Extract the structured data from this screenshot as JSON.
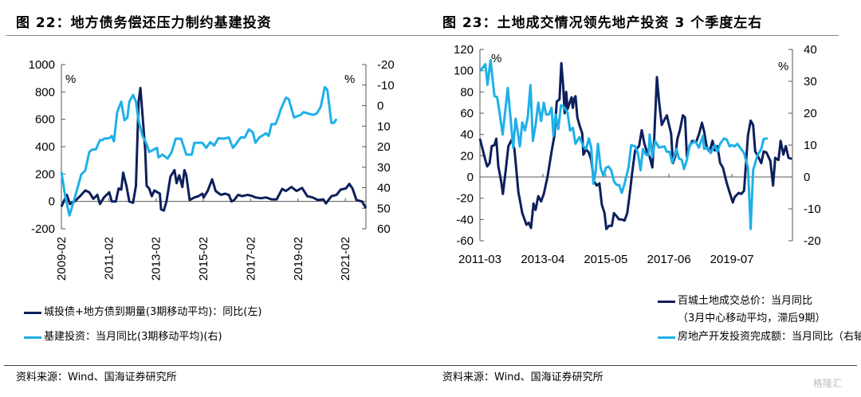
{
  "colors": {
    "dark": "#0d1f5c",
    "light": "#1eb0e8"
  },
  "source_left": "资料来源：Wind、国海证券研究所",
  "source_right": "资料来源：Wind、国海证券研究所",
  "watermark": "格隆汇",
  "chart_data": [
    {
      "type": "line",
      "title": "图 22：地方债务偿还压力制约基建投资",
      "ylabel_left": "%",
      "ylabel_right": "%",
      "ylim_left": [
        -200,
        1000
      ],
      "yticks_left": [
        "1000",
        "800",
        "600",
        "400",
        "200",
        "0",
        "-200"
      ],
      "ylim_right": [
        -20,
        60
      ],
      "right_inverted": true,
      "yticks_right": [
        "-20",
        "-10",
        "0",
        "10",
        "20",
        "30",
        "40",
        "50",
        "60"
      ],
      "xlim": [
        2009.08,
        2021.95
      ],
      "xticks": [
        {
          "x": 2009.08,
          "label": "2009-02"
        },
        {
          "x": 2011.08,
          "label": "2011-02"
        },
        {
          "x": 2013.08,
          "label": "2013-02"
        },
        {
          "x": 2015.08,
          "label": "2015-02"
        },
        {
          "x": 2017.08,
          "label": "2017-02"
        },
        {
          "x": 2019.08,
          "label": "2019-02"
        },
        {
          "x": 2021.08,
          "label": "2021-02"
        }
      ],
      "series": [
        {
          "name": "城投债+地方债到期量(3期移动平均)：同比(左)",
          "axis": "left",
          "color": "dark",
          "x": [
            2009.08,
            2009.31,
            2009.44,
            2009.64,
            2009.87,
            2010.09,
            2010.26,
            2010.43,
            2010.6,
            2010.71,
            2010.88,
            2011.1,
            2011.21,
            2011.38,
            2011.5,
            2011.61,
            2011.69,
            2011.83,
            2011.95,
            2012.11,
            2012.23,
            2012.34,
            2012.42,
            2012.51,
            2012.62,
            2012.68,
            2012.79,
            2012.9,
            2013.01,
            2013.24,
            2013.29,
            2013.41,
            2013.52,
            2013.69,
            2013.86,
            2013.95,
            2014.06,
            2014.19,
            2014.28,
            2014.36,
            2014.5,
            2014.7,
            2014.87,
            2015.04,
            2015.09,
            2015.26,
            2015.45,
            2015.6,
            2015.82,
            2015.99,
            2016.16,
            2016.27,
            2016.38,
            2016.55,
            2016.72,
            2016.95,
            2017.17,
            2017.28,
            2017.51,
            2017.73,
            2017.96,
            2018.18,
            2018.41,
            2018.57,
            2018.8,
            2019.02,
            2019.25,
            2019.47,
            2019.7,
            2019.92,
            2020.15,
            2020.26,
            2020.49,
            2020.71,
            2020.88,
            2021.1,
            2021.25,
            2021.38,
            2021.55,
            2021.78,
            2021.95
          ],
          "y": [
            -38,
            48,
            -19,
            0,
            38,
            80,
            67,
            19,
            48,
            -19,
            29,
            67,
            0,
            0,
            95,
            86,
            210,
            114,
            0,
            -10,
            114,
            724,
            829,
            629,
            381,
            114,
            95,
            38,
            80,
            57,
            -57,
            -67,
            0,
            181,
            229,
            133,
            191,
            105,
            229,
            191,
            10,
            29,
            38,
            57,
            29,
            76,
            162,
            76,
            48,
            57,
            48,
            0,
            10,
            48,
            38,
            48,
            38,
            29,
            23,
            29,
            15,
            15,
            91,
            76,
            105,
            76,
            99,
            38,
            29,
            10,
            15,
            -15,
            38,
            48,
            86,
            95,
            128,
            95,
            10,
            0,
            -48
          ]
        },
        {
          "name": "基建投资：当月同比(3期移动平均)(右)",
          "axis": "right",
          "color": "light",
          "x": [
            2009.08,
            2009.25,
            2009.42,
            2009.59,
            2009.75,
            2009.92,
            2010.09,
            2010.26,
            2010.37,
            2010.54,
            2010.71,
            2010.82,
            2010.88,
            2011.1,
            2011.21,
            2011.3,
            2011.44,
            2011.61,
            2011.75,
            2011.87,
            2011.95,
            2012.11,
            2012.23,
            2012.34,
            2012.51,
            2012.68,
            2012.79,
            2013.12,
            2013.18,
            2013.35,
            2013.57,
            2013.74,
            2013.91,
            2014.14,
            2014.36,
            2014.59,
            2014.7,
            2015.04,
            2015.2,
            2015.37,
            2015.54,
            2015.71,
            2015.93,
            2016.16,
            2016.33,
            2016.5,
            2016.66,
            2016.83,
            2017.0,
            2017.17,
            2017.28,
            2017.45,
            2017.73,
            2017.84,
            2017.96,
            2018.13,
            2018.24,
            2018.35,
            2018.57,
            2018.69,
            2018.91,
            2019.19,
            2019.31,
            2019.53,
            2019.7,
            2019.87,
            2020.04,
            2020.21,
            2020.32,
            2020.49,
            2020.6,
            2020.71
          ],
          "y": [
            32.3,
            44.5,
            53.5,
            47.1,
            40.6,
            33.5,
            31.6,
            22.6,
            21.5,
            21.3,
            16.8,
            16.8,
            16.1,
            15.9,
            14.8,
            17.4,
            3.2,
            -1.9,
            7.1,
            5.8,
            -1.9,
            -5.2,
            -1.9,
            7.1,
            14.8,
            18.7,
            22.6,
            20.6,
            25.2,
            23.9,
            25.8,
            22.6,
            16.1,
            16.1,
            23.9,
            23.9,
            18.1,
            18.1,
            20.6,
            17.8,
            19.4,
            15.9,
            16.1,
            15.5,
            20.6,
            18.1,
            15.5,
            15.5,
            11.6,
            12.9,
            18.1,
            15.5,
            13.5,
            14.8,
            9.0,
            9.0,
            5.8,
            1.9,
            -3.9,
            -3.2,
            5.8,
            4.5,
            3.2,
            3.9,
            4.5,
            3.9,
            0.6,
            -9.0,
            -7.7,
            8.4,
            8.4,
            6.5
          ]
        }
      ]
    },
    {
      "type": "line",
      "title": "图 23：土地成交情况领先地产投资 3 个季度左右",
      "ylabel_left": "%",
      "ylabel_right": "%",
      "ylim_left": [
        -60,
        120
      ],
      "yticks_left": [
        "120",
        "100",
        "80",
        "60",
        "40",
        "20",
        "0",
        "-20",
        "-40",
        "-60"
      ],
      "ylim_right": [
        -20,
        40
      ],
      "yticks_right": [
        "40",
        "30",
        "20",
        "10",
        "0",
        "-10",
        "-20"
      ],
      "xlim": [
        2011.17,
        2021.5
      ],
      "xticks": [
        {
          "x": 2011.17,
          "label": "2011-03"
        },
        {
          "x": 2013.25,
          "label": "2013-04"
        },
        {
          "x": 2015.33,
          "label": "2015-05"
        },
        {
          "x": 2017.42,
          "label": "2017-06"
        },
        {
          "x": 2019.5,
          "label": "2019-07"
        }
      ],
      "series": [
        {
          "name": "百城土地成交总价：当月同比（3月中心移动平均，滞后9期）",
          "axis": "left",
          "color": "dark",
          "x": [
            2011.17,
            2011.35,
            2011.41,
            2011.49,
            2011.56,
            2011.65,
            2011.71,
            2011.78,
            2011.87,
            2011.93,
            2012.02,
            2012.11,
            2012.22,
            2012.31,
            2012.44,
            2012.57,
            2012.71,
            2012.78,
            2012.86,
            2012.94,
            2013.01,
            2013.1,
            2013.19,
            2013.28,
            2013.41,
            2013.54,
            2013.63,
            2013.71,
            2013.8,
            2013.86,
            2013.92,
            2013.97,
            2014.02,
            2014.07,
            2014.15,
            2014.2,
            2014.24,
            2014.28,
            2014.33,
            2014.39,
            2014.46,
            2014.55,
            2014.59,
            2014.68,
            2014.77,
            2014.85,
            2014.94,
            2015.03,
            2015.12,
            2015.2,
            2015.29,
            2015.35,
            2015.44,
            2015.53,
            2015.6,
            2015.69,
            2015.77,
            2015.86,
            2015.95,
            2016.04,
            2016.13,
            2016.21,
            2016.3,
            2016.43,
            2016.52,
            2016.61,
            2016.7,
            2016.78,
            2016.87,
            2016.93,
            2017.02,
            2017.09,
            2017.18,
            2017.27,
            2017.35,
            2017.42,
            2017.49,
            2017.55,
            2017.62,
            2017.7,
            2017.78,
            2017.88,
            2017.95,
            2018.01,
            2018.1,
            2018.19,
            2018.32,
            2018.42,
            2018.51,
            2018.58,
            2018.67,
            2018.76,
            2018.86,
            2018.93,
            2019.02,
            2019.11,
            2019.2,
            2019.33,
            2019.53,
            2019.59,
            2019.72,
            2019.81,
            2019.9,
            2020.03,
            2020.12,
            2020.2,
            2020.27,
            2020.35,
            2020.47,
            2020.55,
            2020.64,
            2020.77,
            2020.86,
            2020.93,
            2021.04,
            2021.11,
            2021.2,
            2021.28,
            2021.37,
            2021.48
          ],
          "y": [
            36,
            16,
            10,
            13,
            29,
            30,
            36,
            10,
            -4,
            -16,
            6,
            29,
            35,
            26,
            -14,
            -34,
            -45,
            -43,
            -48,
            -25,
            -31,
            -18,
            -23,
            -16,
            1,
            24,
            39,
            71,
            73,
            107,
            86,
            60,
            80,
            64,
            71,
            75,
            65,
            73,
            76,
            56,
            49,
            41,
            21,
            26,
            23,
            16,
            -4,
            -8,
            -6,
            -26,
            -34,
            -49,
            -46,
            -46,
            -34,
            -37,
            -40,
            -40,
            -41,
            -34,
            -14,
            6,
            25,
            29,
            44,
            31,
            23,
            19,
            9,
            36,
            94,
            71,
            49,
            54,
            58,
            49,
            41,
            13,
            19,
            36,
            44,
            58,
            56,
            19,
            29,
            34,
            33,
            41,
            51,
            43,
            28,
            24,
            34,
            25,
            29,
            13,
            9,
            -6,
            -24,
            -19,
            -15,
            -16,
            -13,
            39,
            53,
            49,
            24,
            20,
            13,
            24,
            23,
            15,
            -8,
            18,
            16,
            34,
            21,
            29,
            18,
            17
          ]
        },
        {
          "name": "房地产开发投资完成额：当月同比（右轴）",
          "axis": "right",
          "color": "light",
          "x": [
            2011.17,
            2011.26,
            2011.35,
            2011.42,
            2011.52,
            2011.65,
            2011.74,
            2011.83,
            2011.92,
            2012.09,
            2012.18,
            2012.27,
            2012.35,
            2012.49,
            2012.57,
            2012.66,
            2012.75,
            2012.84,
            2012.92,
            2013.01,
            2013.1,
            2013.19,
            2013.28,
            2013.36,
            2013.45,
            2013.54,
            2013.6,
            2013.67,
            2013.76,
            2013.85,
            2013.93,
            2014.06,
            2014.15,
            2014.24,
            2014.33,
            2014.46,
            2014.59,
            2014.68,
            2014.77,
            2014.85,
            2014.92,
            2014.99,
            2015.07,
            2015.16,
            2015.25,
            2015.34,
            2015.42,
            2015.51,
            2015.6,
            2015.69,
            2015.77,
            2015.86,
            2015.95,
            2016.08,
            2016.17,
            2016.3,
            2016.39,
            2016.48,
            2016.56,
            2016.65,
            2016.74,
            2016.78,
            2016.87,
            2016.96,
            2017.09,
            2017.27,
            2017.35,
            2017.44,
            2017.53,
            2017.66,
            2017.75,
            2017.84,
            2017.92,
            2018.01,
            2018.1,
            2018.28,
            2018.41,
            2018.54,
            2018.58,
            2018.71,
            2018.8,
            2018.93,
            2019.02,
            2019.11,
            2019.24,
            2019.33,
            2019.42,
            2019.5,
            2019.59,
            2019.68,
            2019.77,
            2019.9,
            2020.03,
            2020.12,
            2020.2,
            2020.34,
            2020.47,
            2020.55,
            2020.68
          ],
          "y": [
            33.3,
            34.2,
            35.4,
            28.9,
            36.7,
            25.4,
            25.0,
            19.6,
            13.3,
            27.9,
            18.8,
            9.2,
            18.3,
            9.6,
            17.1,
            14.6,
            18.8,
            28.8,
            11.3,
            16.3,
            23.3,
            17.5,
            23.3,
            19.6,
            19.6,
            21.7,
            12.9,
            19.6,
            15.0,
            22.5,
            22.1,
            20.4,
            14.6,
            15.4,
            10.4,
            12.5,
            9.6,
            8.8,
            12.1,
            9.2,
            -2.1,
            1.3,
            10.4,
            2.9,
            0.4,
            2.9,
            3.3,
            2.1,
            -1.3,
            -2.5,
            -2.5,
            -5.0,
            -2.1,
            2.9,
            10.0,
            9.6,
            7.5,
            2.1,
            8.8,
            7.1,
            6.7,
            13.3,
            6.3,
            11.3,
            9.2,
            9.6,
            7.9,
            7.9,
            4.4,
            8.8,
            5.8,
            5.4,
            2.5,
            5.4,
            10.0,
            11.3,
            9.2,
            12.9,
            8.8,
            9.2,
            7.5,
            10.0,
            7.9,
            10.4,
            12.1,
            11.7,
            9.6,
            10.0,
            9.6,
            10.4,
            9.2,
            7.5,
            2.9,
            -16.3,
            2.1,
            6.7,
            8.8,
            11.9,
            12.1
          ]
        }
      ]
    }
  ]
}
